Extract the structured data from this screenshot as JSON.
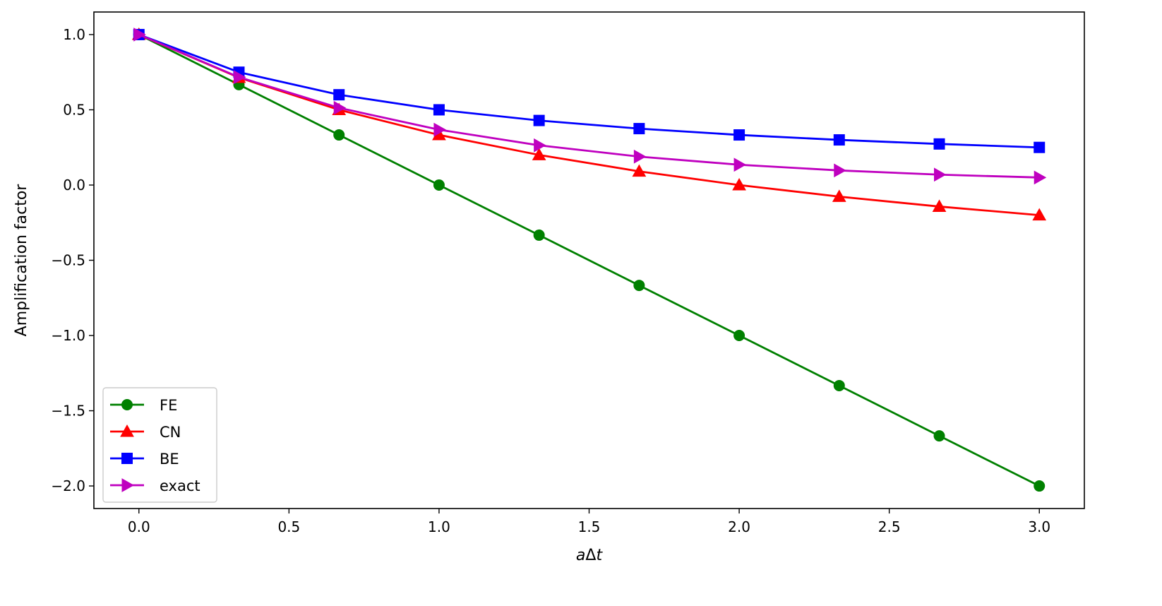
{
  "chart_data": {
    "type": "line",
    "xlabel_italic_a": "a",
    "xlabel_delta": "Δ",
    "xlabel_italic_t": "t",
    "ylabel": "Amplification factor",
    "xlim": [
      -0.15,
      3.15
    ],
    "ylim": [
      -2.15,
      1.15
    ],
    "xticks": [
      0.0,
      0.5,
      1.0,
      1.5,
      2.0,
      2.5,
      3.0
    ],
    "xtick_labels": [
      "0.0",
      "0.5",
      "1.0",
      "1.5",
      "2.0",
      "2.5",
      "3.0"
    ],
    "yticks": [
      1.0,
      0.5,
      0.0,
      -0.5,
      -1.0,
      -1.5,
      -2.0
    ],
    "ytick_labels": [
      "1.0",
      "0.5",
      "0.0",
      "−0.5",
      "−1.0",
      "−1.5",
      "−2.0"
    ],
    "grid": false,
    "legend_position": "lower-left",
    "x": [
      0.0,
      0.3333,
      0.6667,
      1.0,
      1.3333,
      1.6667,
      2.0,
      2.3333,
      2.6667,
      3.0
    ],
    "series": [
      {
        "name": "FE",
        "color": "#008000",
        "marker": "circle",
        "values": [
          1.0,
          0.667,
          0.333,
          0.0,
          -0.333,
          -0.667,
          -1.0,
          -1.333,
          -1.667,
          -2.0
        ]
      },
      {
        "name": "CN",
        "color": "#ff0000",
        "marker": "triangle-up",
        "values": [
          1.0,
          0.714,
          0.5,
          0.333,
          0.2,
          0.091,
          0.0,
          -0.077,
          -0.143,
          -0.2
        ]
      },
      {
        "name": "BE",
        "color": "#0000ff",
        "marker": "square",
        "values": [
          1.0,
          0.75,
          0.6,
          0.5,
          0.429,
          0.375,
          0.333,
          0.3,
          0.273,
          0.25
        ]
      },
      {
        "name": "exact",
        "color": "#bf00bf",
        "marker": "triangle-right",
        "values": [
          1.0,
          0.717,
          0.513,
          0.368,
          0.264,
          0.189,
          0.135,
          0.097,
          0.069,
          0.05
        ]
      }
    ]
  }
}
